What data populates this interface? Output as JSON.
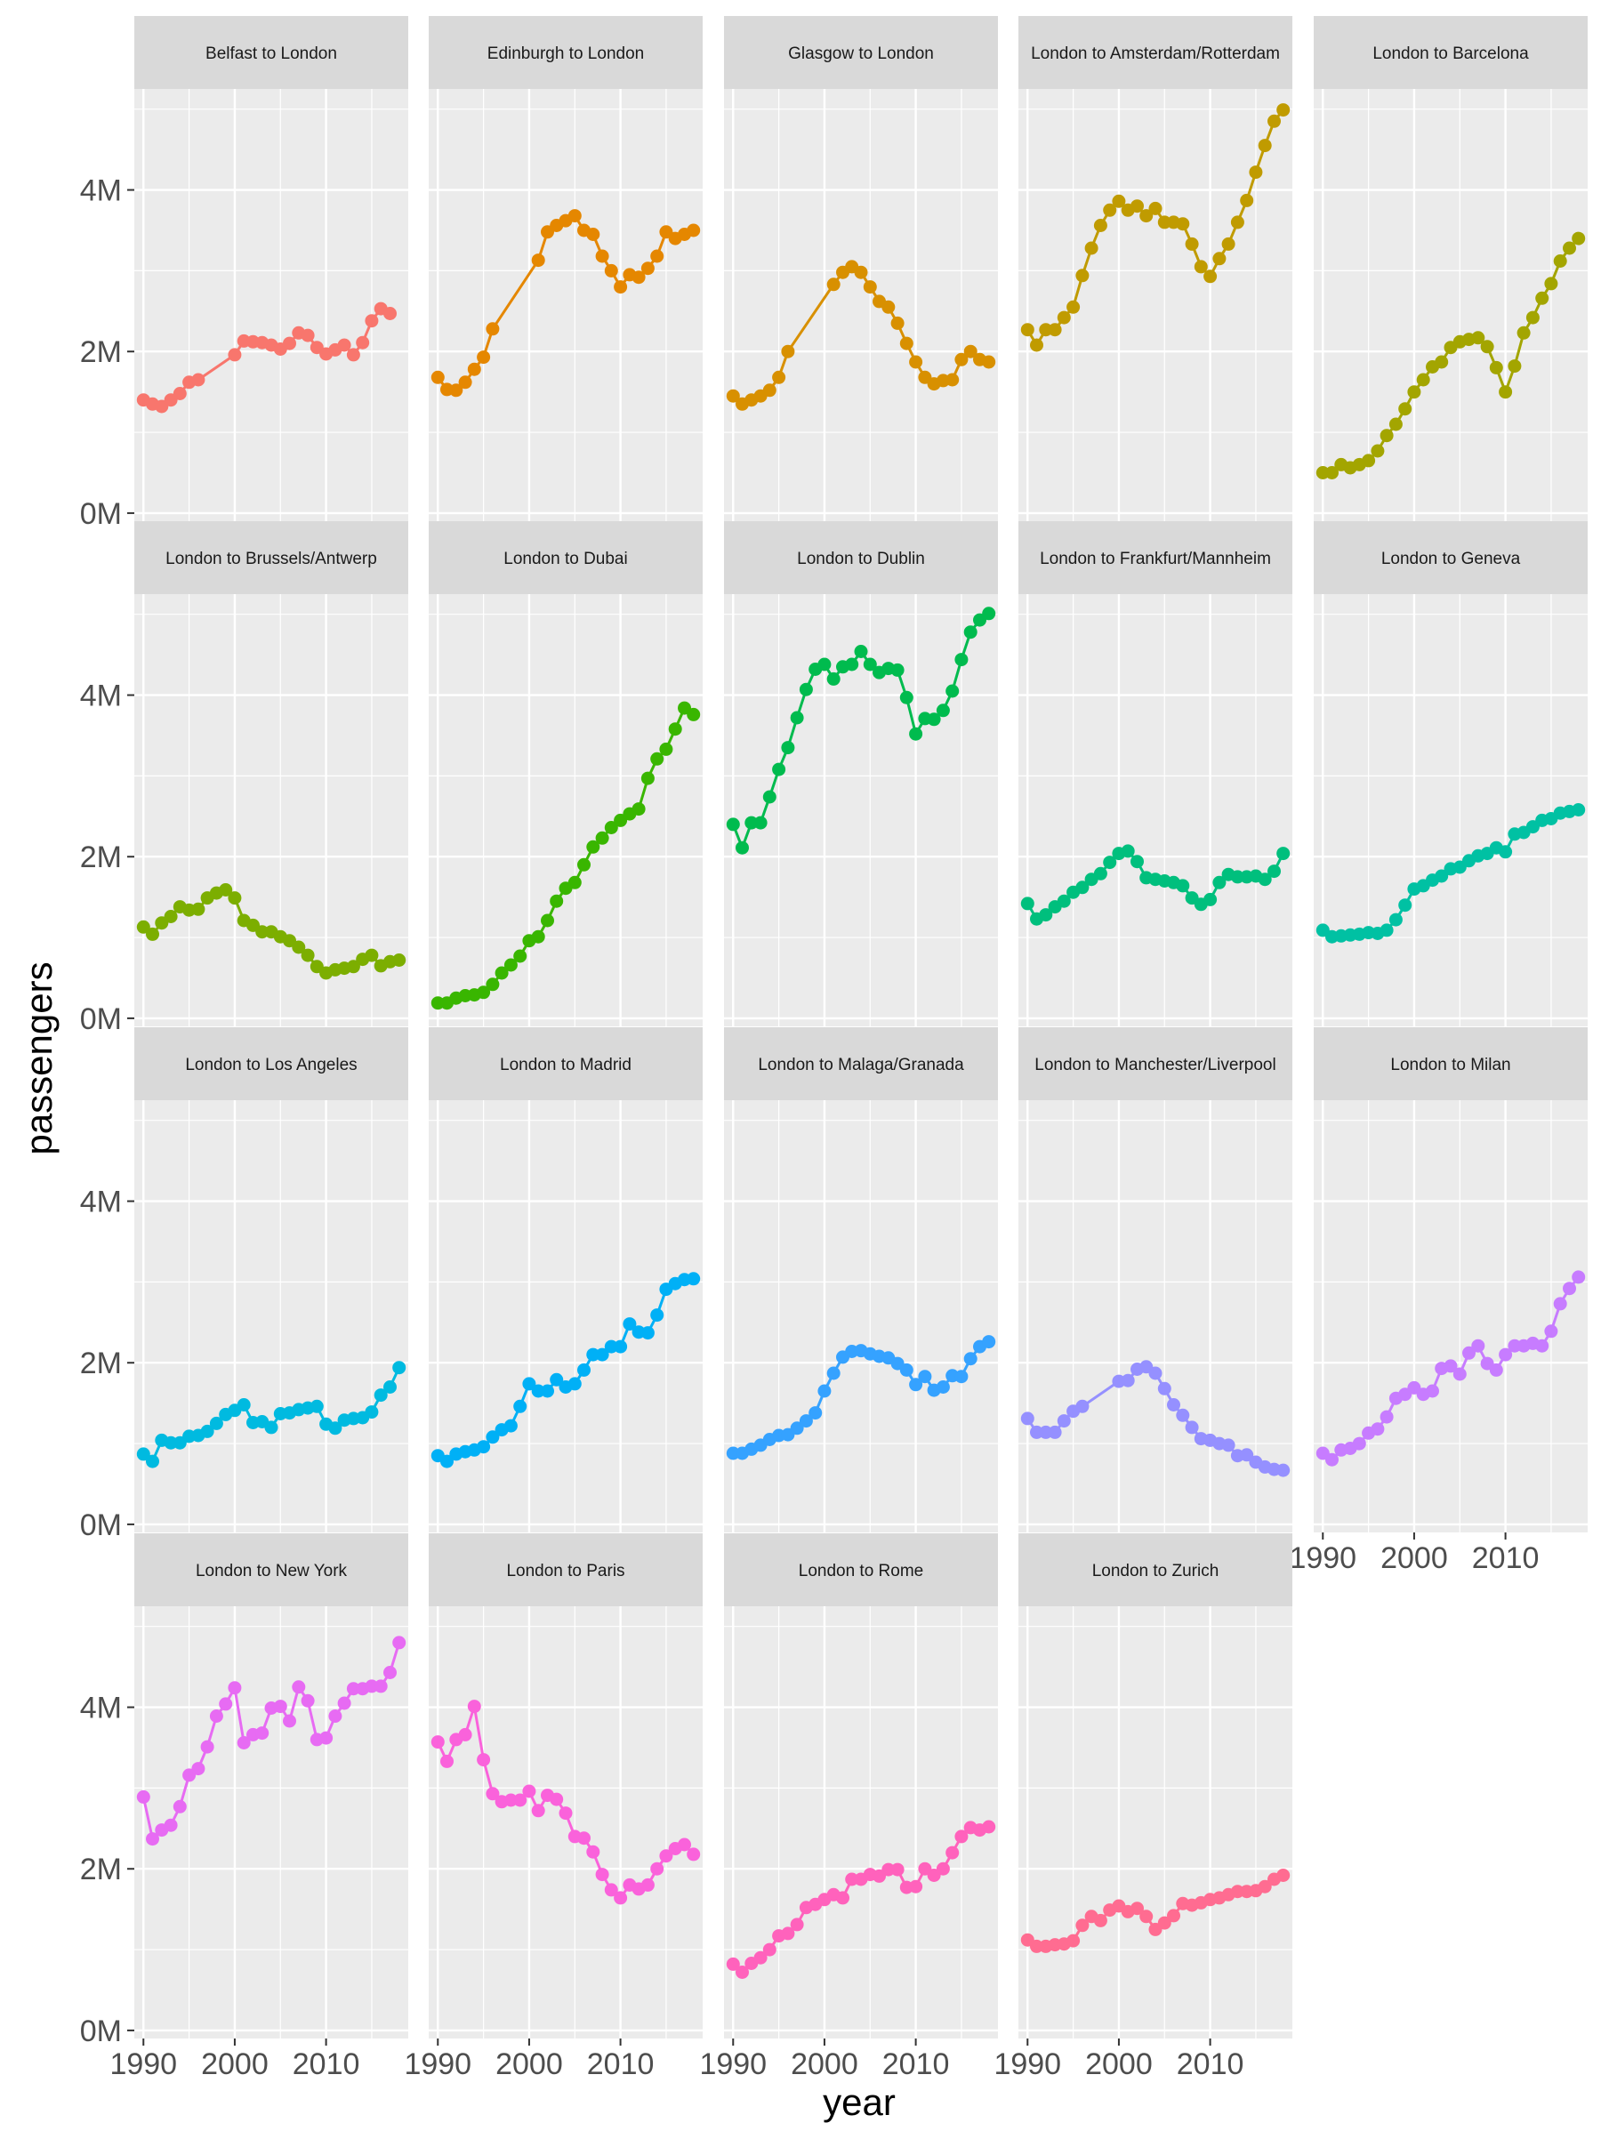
{
  "chart_data": {
    "type": "line",
    "xlabel": "year",
    "ylabel": "passengers",
    "xlim": [
      1989,
      2019
    ],
    "ylim": [
      -100000,
      5250000
    ],
    "x_ticks": [
      1990,
      2000,
      2010
    ],
    "y_ticks": [
      0,
      2000000,
      4000000
    ],
    "y_tick_labels": [
      "0M",
      "2M",
      "4M"
    ],
    "grid": true,
    "legend": "none",
    "facet_layout": "wrap, 5 columns, 4 rows",
    "years": [
      1990,
      1991,
      1992,
      1993,
      1994,
      1995,
      1996,
      1997,
      1998,
      1999,
      2000,
      2001,
      2002,
      2003,
      2004,
      2005,
      2006,
      2007,
      2008,
      2009,
      2010,
      2011,
      2012,
      2013,
      2014,
      2015,
      2016,
      2017,
      2018
    ],
    "series": [
      {
        "name": "Belfast to London",
        "color": "#F8766D",
        "values": [
          1400000,
          1350000,
          1320000,
          1400000,
          1480000,
          1620000,
          1650000,
          null,
          null,
          null,
          1960000,
          2130000,
          2120000,
          2110000,
          2080000,
          2030000,
          2100000,
          2230000,
          2200000,
          2050000,
          1970000,
          2020000,
          2080000,
          1960000,
          2110000,
          2380000,
          2530000,
          2470000,
          null
        ]
      },
      {
        "name": "Edinburgh to London",
        "color": "#E58700",
        "values": [
          1680000,
          1530000,
          1520000,
          1620000,
          1780000,
          1930000,
          2280000,
          null,
          null,
          null,
          null,
          3130000,
          3480000,
          3560000,
          3620000,
          3680000,
          3500000,
          3450000,
          3180000,
          3000000,
          2800000,
          2950000,
          2920000,
          3030000,
          3180000,
          3480000,
          3400000,
          3450000,
          3500000
        ]
      },
      {
        "name": "Glasgow to London",
        "color": "#D89000",
        "values": [
          1450000,
          1350000,
          1400000,
          1450000,
          1520000,
          1680000,
          2000000,
          null,
          null,
          null,
          null,
          2830000,
          2980000,
          3050000,
          2980000,
          2800000,
          2620000,
          2550000,
          2350000,
          2100000,
          1870000,
          1680000,
          1600000,
          1640000,
          1650000,
          1900000,
          2000000,
          1900000,
          1870000
        ]
      },
      {
        "name": "London to Amsterdam/Rotterdam",
        "color": "#C09B00",
        "values": [
          2270000,
          2080000,
          2270000,
          2270000,
          2420000,
          2550000,
          2940000,
          3280000,
          3560000,
          3750000,
          3860000,
          3750000,
          3800000,
          3680000,
          3770000,
          3600000,
          3600000,
          3580000,
          3330000,
          3050000,
          2930000,
          3150000,
          3330000,
          3600000,
          3870000,
          4220000,
          4550000,
          4850000,
          4990000
        ]
      },
      {
        "name": "London to Barcelona",
        "color": "#A3A500",
        "values": [
          500000,
          500000,
          600000,
          560000,
          600000,
          650000,
          770000,
          960000,
          1100000,
          1290000,
          1500000,
          1650000,
          1810000,
          1870000,
          2050000,
          2120000,
          2150000,
          2170000,
          2060000,
          1800000,
          1500000,
          1820000,
          2230000,
          2420000,
          2660000,
          2840000,
          3120000,
          3280000,
          3400000
        ]
      },
      {
        "name": "London to Brussels/Antwerp",
        "color": "#7CAE00",
        "values": [
          1130000,
          1040000,
          1180000,
          1260000,
          1380000,
          1340000,
          1350000,
          1490000,
          1550000,
          1590000,
          1490000,
          1210000,
          1150000,
          1070000,
          1070000,
          1010000,
          960000,
          880000,
          780000,
          640000,
          560000,
          600000,
          620000,
          640000,
          730000,
          780000,
          650000,
          700000,
          720000
        ]
      },
      {
        "name": "London to Dubai",
        "color": "#39B600",
        "values": [
          190000,
          190000,
          250000,
          280000,
          290000,
          320000,
          420000,
          560000,
          660000,
          770000,
          960000,
          1010000,
          1210000,
          1450000,
          1610000,
          1680000,
          1900000,
          2120000,
          2230000,
          2360000,
          2450000,
          2530000,
          2590000,
          2970000,
          3210000,
          3330000,
          3580000,
          3840000,
          3760000
        ]
      },
      {
        "name": "London to Dublin",
        "color": "#00BB4E",
        "values": [
          2400000,
          2110000,
          2420000,
          2420000,
          2740000,
          3080000,
          3350000,
          3720000,
          4070000,
          4320000,
          4380000,
          4200000,
          4350000,
          4380000,
          4540000,
          4380000,
          4280000,
          4330000,
          4310000,
          3970000,
          3520000,
          3710000,
          3700000,
          3810000,
          4050000,
          4440000,
          4780000,
          4930000,
          5010000
        ]
      },
      {
        "name": "London to Frankfurt/Mannheim",
        "color": "#00BF7D",
        "values": [
          1420000,
          1230000,
          1280000,
          1380000,
          1450000,
          1560000,
          1620000,
          1720000,
          1790000,
          1930000,
          2040000,
          2070000,
          1940000,
          1740000,
          1720000,
          1700000,
          1680000,
          1640000,
          1490000,
          1410000,
          1470000,
          1680000,
          1780000,
          1750000,
          1750000,
          1760000,
          1720000,
          1820000,
          2040000
        ]
      },
      {
        "name": "London to Geneva",
        "color": "#00C1A3",
        "values": [
          1090000,
          1010000,
          1020000,
          1030000,
          1040000,
          1060000,
          1050000,
          1090000,
          1220000,
          1400000,
          1600000,
          1640000,
          1710000,
          1760000,
          1850000,
          1870000,
          1950000,
          2010000,
          2040000,
          2110000,
          2060000,
          2280000,
          2300000,
          2370000,
          2450000,
          2470000,
          2540000,
          2560000,
          2580000
        ]
      },
      {
        "name": "London to Los Angeles",
        "color": "#00BAE0",
        "values": [
          870000,
          780000,
          1040000,
          1010000,
          1010000,
          1090000,
          1100000,
          1150000,
          1250000,
          1360000,
          1410000,
          1480000,
          1260000,
          1270000,
          1200000,
          1370000,
          1380000,
          1420000,
          1440000,
          1460000,
          1240000,
          1190000,
          1290000,
          1310000,
          1320000,
          1390000,
          1600000,
          1700000,
          1940000
        ]
      },
      {
        "name": "London to Madrid",
        "color": "#00B0F6",
        "values": [
          850000,
          780000,
          870000,
          900000,
          920000,
          960000,
          1080000,
          1170000,
          1220000,
          1460000,
          1740000,
          1650000,
          1650000,
          1790000,
          1700000,
          1740000,
          1910000,
          2100000,
          2100000,
          2200000,
          2200000,
          2480000,
          2380000,
          2370000,
          2590000,
          2910000,
          2980000,
          3030000,
          3040000
        ]
      },
      {
        "name": "London to Malaga/Granada",
        "color": "#35A2FF",
        "values": [
          880000,
          880000,
          930000,
          980000,
          1050000,
          1100000,
          1110000,
          1190000,
          1280000,
          1380000,
          1650000,
          1870000,
          2070000,
          2140000,
          2150000,
          2110000,
          2080000,
          2060000,
          1990000,
          1910000,
          1730000,
          1830000,
          1660000,
          1700000,
          1840000,
          1830000,
          2050000,
          2200000,
          2260000
        ]
      },
      {
        "name": "London to Manchester/Liverpool",
        "color": "#9590FF",
        "values": [
          1310000,
          1140000,
          1140000,
          1140000,
          1280000,
          1400000,
          1460000,
          null,
          null,
          null,
          1770000,
          1780000,
          1920000,
          1950000,
          1870000,
          1680000,
          1480000,
          1350000,
          1200000,
          1060000,
          1040000,
          1000000,
          980000,
          850000,
          860000,
          770000,
          710000,
          680000,
          670000
        ]
      },
      {
        "name": "London to Milan",
        "color": "#C77CFF",
        "values": [
          880000,
          800000,
          920000,
          940000,
          1000000,
          1130000,
          1180000,
          1330000,
          1560000,
          1610000,
          1690000,
          1610000,
          1650000,
          1930000,
          1960000,
          1860000,
          2120000,
          2210000,
          1990000,
          1910000,
          2100000,
          2210000,
          2210000,
          2240000,
          2210000,
          2390000,
          2730000,
          2920000,
          3060000
        ]
      },
      {
        "name": "London to New York",
        "color": "#E76BF3",
        "values": [
          2890000,
          2370000,
          2480000,
          2540000,
          2770000,
          3160000,
          3240000,
          3510000,
          3890000,
          4040000,
          4240000,
          3560000,
          3660000,
          3680000,
          3990000,
          4010000,
          3830000,
          4250000,
          4080000,
          3600000,
          3620000,
          3890000,
          4050000,
          4230000,
          4230000,
          4260000,
          4260000,
          4430000,
          4800000
        ]
      },
      {
        "name": "London to Paris",
        "color": "#FA62DB",
        "values": [
          3570000,
          3330000,
          3600000,
          3660000,
          4010000,
          3350000,
          2930000,
          2830000,
          2850000,
          2850000,
          2960000,
          2720000,
          2910000,
          2860000,
          2690000,
          2400000,
          2380000,
          2210000,
          1930000,
          1740000,
          1640000,
          1800000,
          1750000,
          1800000,
          2000000,
          2160000,
          2250000,
          2300000,
          2180000
        ]
      },
      {
        "name": "London to Rome",
        "color": "#FF62BC",
        "values": [
          820000,
          720000,
          830000,
          900000,
          1000000,
          1170000,
          1200000,
          1310000,
          1520000,
          1560000,
          1620000,
          1680000,
          1640000,
          1870000,
          1870000,
          1930000,
          1910000,
          1990000,
          1990000,
          1770000,
          1780000,
          2000000,
          1920000,
          2000000,
          2200000,
          2400000,
          2510000,
          2480000,
          2520000
        ]
      },
      {
        "name": "London to Zurich",
        "color": "#FF6C91",
        "values": [
          1120000,
          1040000,
          1040000,
          1060000,
          1070000,
          1110000,
          1300000,
          1410000,
          1360000,
          1490000,
          1540000,
          1470000,
          1510000,
          1410000,
          1250000,
          1330000,
          1420000,
          1570000,
          1550000,
          1580000,
          1620000,
          1640000,
          1680000,
          1720000,
          1720000,
          1730000,
          1780000,
          1870000,
          1920000
        ]
      }
    ]
  }
}
